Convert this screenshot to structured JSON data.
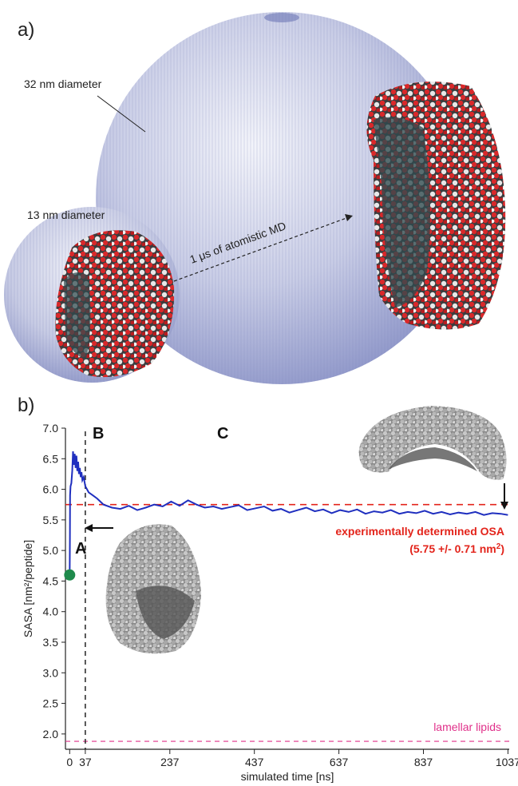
{
  "panel_a": {
    "label": "a)",
    "large_sphere_label": "32 nm diameter",
    "small_sphere_label": "13 nm diameter",
    "arrow_label": "1 μs of atomistic MD"
  },
  "panel_b": {
    "label": "b)",
    "region_b": "B",
    "region_c": "C",
    "start_marker": "A",
    "exp_label_line1": "experimentally determined OSA",
    "exp_label_line2": "(5.75 +/- 0.71 nm",
    "exp_label_sup": "2",
    "exp_label_close": ")",
    "lipid_label": "lamellar lipids"
  },
  "colors": {
    "sasa_line": "#1f2fbf",
    "experimental": "#e3241b",
    "lipids": "#e0308a",
    "start_dot": "#1f8a4c",
    "sphere": "#8f97c9",
    "red_atoms": "#d9282a",
    "white_atoms": "#e8e8e8"
  },
  "chart_data": {
    "type": "line",
    "xlabel": "simulated time [ns]",
    "ylabel": "SASA [nm²/peptide]",
    "xlim": [
      -10,
      1040
    ],
    "ylim": [
      1.75,
      7.0
    ],
    "xticks": [
      0,
      37,
      237,
      437,
      637,
      837,
      1037
    ],
    "xtick_labels": [
      "0",
      "37",
      "237",
      "437",
      "637",
      "837",
      "1037"
    ],
    "yticks": [
      2.0,
      2.5,
      3.0,
      3.5,
      4.0,
      4.5,
      5.0,
      5.5,
      6.0,
      6.5,
      7.0
    ],
    "ytick_labels": [
      "2.0",
      "2.5",
      "3.0",
      "3.5",
      "4.0",
      "4.5",
      "5.0",
      "5.5",
      "6.0",
      "6.5",
      "7.0"
    ],
    "vline_x": 37,
    "experimental_value": 5.75,
    "lamellar_value": 1.88,
    "series": [
      {
        "x": [
          0,
          0.5,
          1,
          2,
          4,
          6,
          8,
          10,
          12,
          14,
          16,
          18,
          20,
          22,
          24,
          26,
          28,
          30,
          33,
          37,
          45,
          55,
          65,
          80,
          100,
          120,
          140,
          160,
          180,
          200,
          220,
          240,
          260,
          280,
          300,
          320,
          340,
          360,
          380,
          400,
          420,
          440,
          460,
          480,
          500,
          520,
          540,
          560,
          580,
          600,
          620,
          640,
          660,
          680,
          700,
          720,
          740,
          760,
          780,
          800,
          820,
          840,
          860,
          880,
          900,
          920,
          940,
          960,
          980,
          1000,
          1020,
          1037
        ],
        "y": [
          4.6,
          5.2,
          5.9,
          6.05,
          6.1,
          6.3,
          6.62,
          6.4,
          6.58,
          6.35,
          6.55,
          6.3,
          6.45,
          6.25,
          6.35,
          6.2,
          6.28,
          6.15,
          6.2,
          6.05,
          5.95,
          5.9,
          5.85,
          5.75,
          5.7,
          5.68,
          5.73,
          5.66,
          5.7,
          5.75,
          5.72,
          5.8,
          5.73,
          5.82,
          5.75,
          5.7,
          5.72,
          5.68,
          5.71,
          5.74,
          5.66,
          5.69,
          5.72,
          5.65,
          5.68,
          5.62,
          5.66,
          5.7,
          5.64,
          5.67,
          5.61,
          5.66,
          5.63,
          5.67,
          5.6,
          5.64,
          5.62,
          5.66,
          5.6,
          5.63,
          5.61,
          5.65,
          5.6,
          5.63,
          5.59,
          5.62,
          5.6,
          5.63,
          5.58,
          5.61,
          5.6,
          5.58
        ]
      }
    ],
    "start_point": {
      "x": 0,
      "y": 4.6
    }
  }
}
